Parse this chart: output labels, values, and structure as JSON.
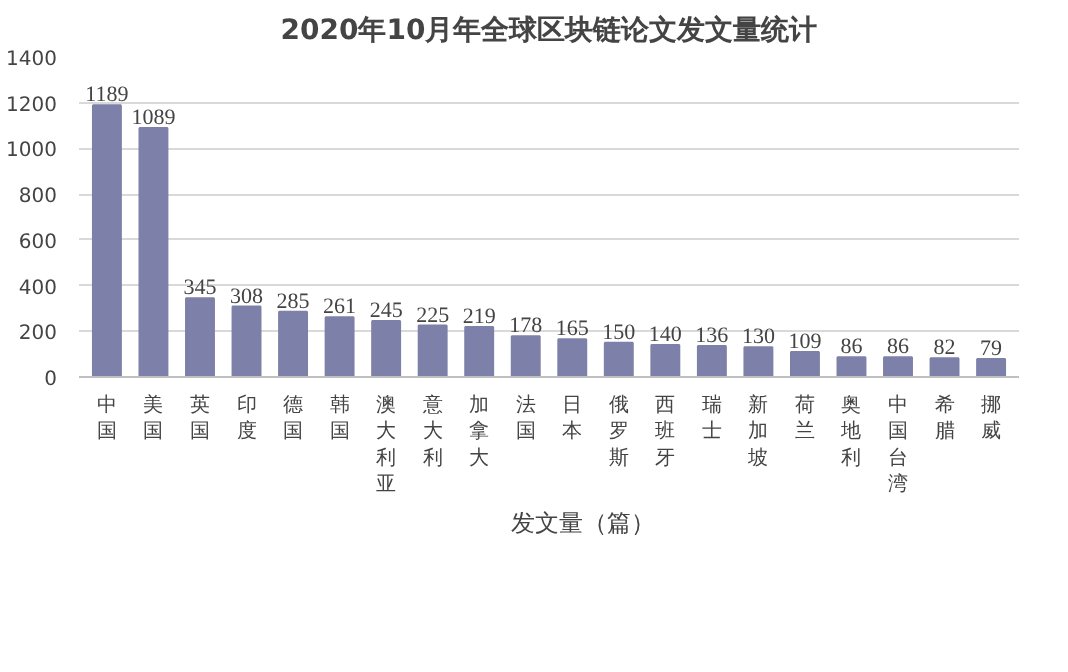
{
  "chart_data": {
    "type": "bar",
    "title": "2020年10月年全球区块链论文发文量统计",
    "categories": [
      "中国",
      "美国",
      "英国",
      "印度",
      "德国",
      "韩国",
      "澳大利亚",
      "意大利",
      "加拿大",
      "法国",
      "日本",
      "俄罗斯",
      "西班牙",
      "瑞士",
      "新加坡",
      "荷兰",
      "奥地利",
      "中国台湾",
      "希腊",
      "挪威"
    ],
    "series": [
      {
        "name": "发文量（篇）",
        "color": "#7d80a8",
        "values": [
          1189,
          1089,
          345,
          308,
          285,
          261,
          245,
          225,
          219,
          178,
          165,
          150,
          140,
          136,
          130,
          109,
          86,
          86,
          82,
          79
        ]
      }
    ],
    "ylim": [
      0,
      1400
    ],
    "yticks": [
      0,
      200,
      400,
      600,
      800,
      1000,
      1200,
      1400
    ],
    "grid": "y",
    "data_labels": true,
    "legend": "bottom"
  }
}
